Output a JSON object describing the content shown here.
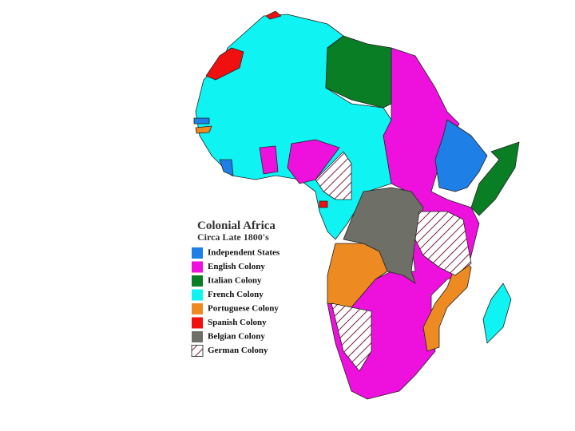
{
  "title": "Colonial Africa",
  "subtitle": "Circa Late 1800's",
  "legend": [
    {
      "label": "Independent States",
      "color": "#1e7fe6"
    },
    {
      "label": "English Colony",
      "color": "#ee11dd"
    },
    {
      "label": "Italian Colony",
      "color": "#0a7e24"
    },
    {
      "label": "French Colony",
      "color": "#0ff3f3"
    },
    {
      "label": "Portuguese Colony",
      "color": "#ee8a22"
    },
    {
      "label": "Spanish Colony",
      "color": "#f01010"
    },
    {
      "label": "Belgian Colony",
      "color": "#6e7068"
    },
    {
      "label": "German Colony",
      "pattern": "hatch"
    }
  ]
}
